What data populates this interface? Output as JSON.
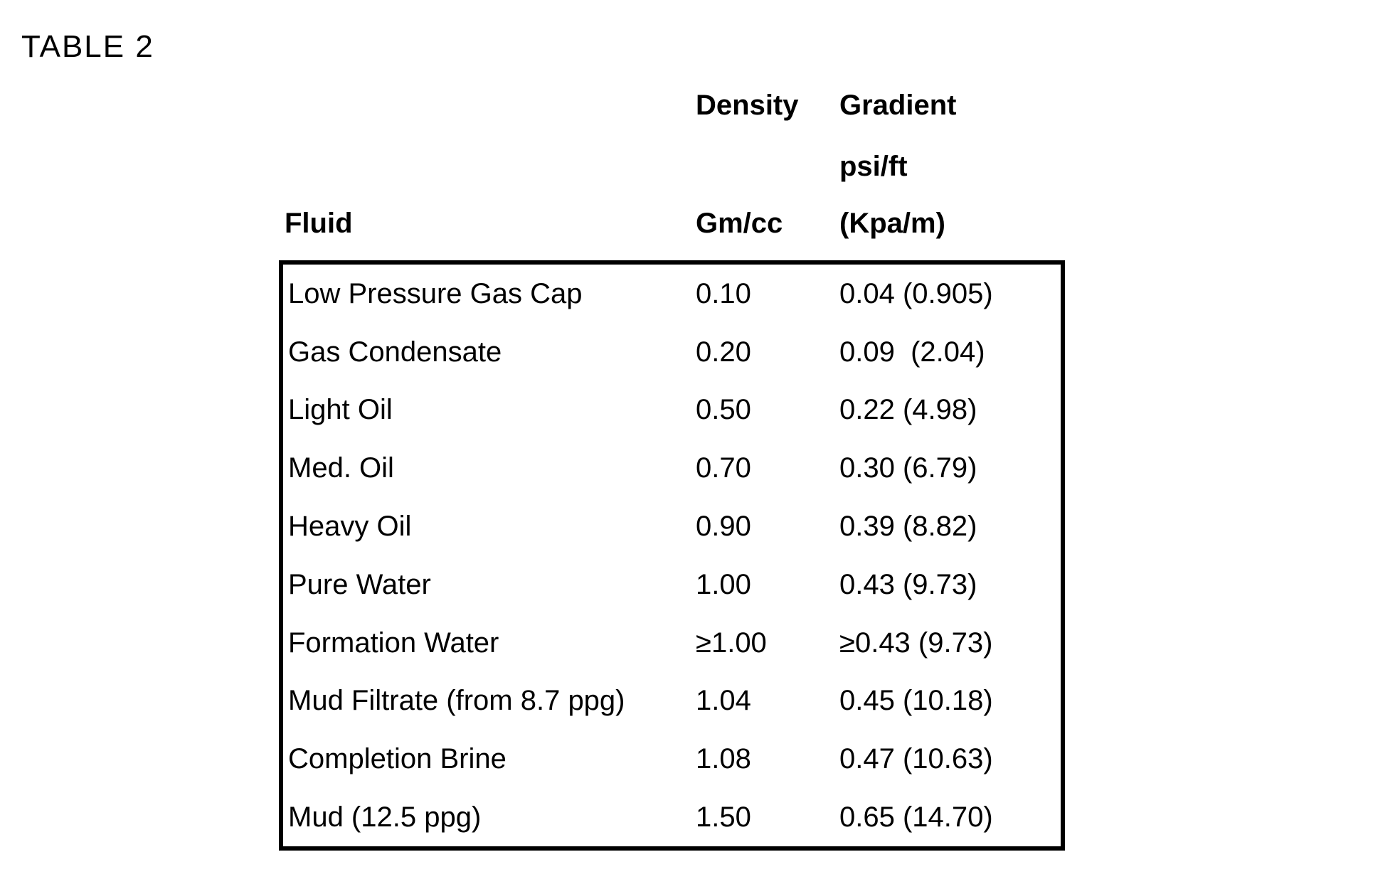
{
  "page_title": "TABLE 2",
  "table": {
    "header": {
      "fluid": "Fluid",
      "density_title": "Density",
      "density_unit": "Gm/cc",
      "gradient_title": "Gradient",
      "gradient_unit_line1": "psi/ft",
      "gradient_unit_line2": "(Kpa/m)"
    },
    "rows": [
      {
        "fluid": "Low Pressure Gas Cap",
        "density": "0.10",
        "gradient": "0.04 (0.905)"
      },
      {
        "fluid": "Gas Condensate",
        "density": "0.20",
        "gradient": "0.09  (2.04)"
      },
      {
        "fluid": "Light Oil",
        "density": "0.50",
        "gradient": "0.22 (4.98)"
      },
      {
        "fluid": "Med. Oil",
        "density": "0.70",
        "gradient": "0.30 (6.79)"
      },
      {
        "fluid": "Heavy Oil",
        "density": "0.90",
        "gradient": "0.39 (8.82)"
      },
      {
        "fluid": "Pure Water",
        "density": "1.00",
        "gradient": "0.43 (9.73)"
      },
      {
        "fluid": "Formation Water",
        "density": "≥1.00",
        "gradient": "≥0.43 (9.73)"
      },
      {
        "fluid": "Mud Filtrate (from 8.7 ppg)",
        "density": "1.04",
        "gradient": "0.45 (10.18)"
      },
      {
        "fluid": "Completion Brine",
        "density": "1.08",
        "gradient": "0.47 (10.63)"
      },
      {
        "fluid": "Mud (12.5 ppg)",
        "density": "1.50",
        "gradient": "0.65 (14.70)"
      }
    ]
  }
}
